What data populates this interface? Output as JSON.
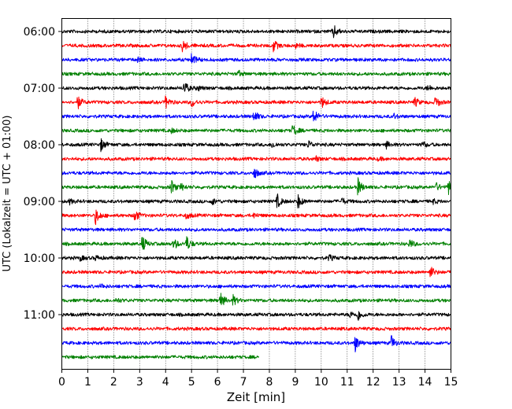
{
  "chart_data": {
    "type": "line",
    "subtype": "helicorder",
    "xlabel": "Zeit  [min]",
    "ylabel": "UTC (Lokalzeit = UTC + 01:00)",
    "xlim": [
      0,
      15
    ],
    "x_ticks": [
      0,
      1,
      2,
      3,
      4,
      5,
      6,
      7,
      8,
      9,
      10,
      11,
      12,
      13,
      14,
      15
    ],
    "x_tick_labels": [
      "0",
      "1",
      "2",
      "3",
      "4",
      "5",
      "6",
      "7",
      "8",
      "9",
      "10",
      "11",
      "12",
      "13",
      "14",
      "15"
    ],
    "y_ticks": [
      "06:00",
      "07:00",
      "08:00",
      "09:00",
      "10:00",
      "11:00"
    ],
    "grid": {
      "vertical_dotted": true
    },
    "trace_colors": [
      "#000000",
      "#ff0000",
      "#0000ff",
      "#008000"
    ],
    "traces": [
      {
        "start": "06:00",
        "end_min": 15,
        "events": [
          {
            "t": 10.45,
            "amp": 10
          }
        ]
      },
      {
        "start": "06:15",
        "end_min": 15,
        "events": [
          {
            "t": 4.65,
            "amp": 8
          },
          {
            "t": 8.15,
            "amp": 8
          },
          {
            "t": 9.0,
            "amp": 3
          }
        ]
      },
      {
        "start": "06:30",
        "end_min": 15,
        "events": [
          {
            "t": 5.0,
            "amp": 8
          },
          {
            "t": 2.9,
            "amp": 3
          }
        ]
      },
      {
        "start": "06:45",
        "end_min": 15,
        "events": [
          {
            "t": 6.8,
            "amp": 4
          }
        ]
      },
      {
        "start": "07:00",
        "end_min": 15,
        "events": [
          {
            "t": 4.7,
            "amp": 10
          },
          {
            "t": 5.2,
            "amp": 4
          },
          {
            "t": 14.1,
            "amp": 4
          }
        ]
      },
      {
        "start": "07:15",
        "end_min": 15,
        "events": [
          {
            "t": 0.6,
            "amp": 9
          },
          {
            "t": 4.0,
            "amp": 8
          },
          {
            "t": 5.0,
            "amp": 6
          },
          {
            "t": 10.0,
            "amp": 8
          },
          {
            "t": 13.6,
            "amp": 6
          },
          {
            "t": 14.4,
            "amp": 8
          }
        ]
      },
      {
        "start": "07:30",
        "end_min": 15,
        "events": [
          {
            "t": 7.4,
            "amp": 8
          },
          {
            "t": 9.7,
            "amp": 10
          },
          {
            "t": 12.8,
            "amp": 3
          }
        ]
      },
      {
        "start": "07:45",
        "end_min": 15,
        "events": [
          {
            "t": 8.9,
            "amp": 8
          },
          {
            "t": 4.2,
            "amp": 3
          }
        ]
      },
      {
        "start": "08:00",
        "end_min": 15,
        "events": [
          {
            "t": 1.5,
            "amp": 8
          },
          {
            "t": 8.1,
            "amp": 4
          },
          {
            "t": 9.5,
            "amp": 5
          },
          {
            "t": 12.5,
            "amp": 4
          },
          {
            "t": 13.9,
            "amp": 4
          }
        ]
      },
      {
        "start": "08:15",
        "end_min": 15,
        "events": [
          {
            "t": 9.8,
            "amp": 3
          },
          {
            "t": 12.2,
            "amp": 2
          }
        ]
      },
      {
        "start": "08:30",
        "end_min": 15,
        "events": [
          {
            "t": 7.4,
            "amp": 8
          }
        ]
      },
      {
        "start": "08:45",
        "end_min": 15,
        "events": [
          {
            "t": 4.2,
            "amp": 10
          },
          {
            "t": 4.6,
            "amp": 4
          },
          {
            "t": 11.4,
            "amp": 12
          },
          {
            "t": 14.4,
            "amp": 6
          },
          {
            "t": 14.9,
            "amp": 10
          }
        ]
      },
      {
        "start": "09:00",
        "end_min": 15,
        "events": [
          {
            "t": 8.3,
            "amp": 9
          },
          {
            "t": 9.1,
            "amp": 9
          },
          {
            "t": 5.8,
            "amp": 4
          },
          {
            "t": 0.3,
            "amp": 3
          },
          {
            "t": 10.8,
            "amp": 4
          },
          {
            "t": 14.3,
            "amp": 3
          }
        ]
      },
      {
        "start": "09:15",
        "end_min": 15,
        "events": [
          {
            "t": 1.3,
            "amp": 11
          },
          {
            "t": 2.8,
            "amp": 9
          },
          {
            "t": 4.8,
            "amp": 4
          },
          {
            "t": 7.4,
            "amp": 3
          }
        ]
      },
      {
        "start": "09:30",
        "end_min": 15,
        "events": []
      },
      {
        "start": "09:45",
        "end_min": 15,
        "events": [
          {
            "t": 3.1,
            "amp": 11
          },
          {
            "t": 4.3,
            "amp": 8
          },
          {
            "t": 4.8,
            "amp": 10
          },
          {
            "t": 13.4,
            "amp": 6
          }
        ]
      },
      {
        "start": "10:00",
        "end_min": 15,
        "events": [
          {
            "t": 0.7,
            "amp": 3
          },
          {
            "t": 1.3,
            "amp": 3
          },
          {
            "t": 10.3,
            "amp": 4
          }
        ]
      },
      {
        "start": "10:15",
        "end_min": 15,
        "events": [
          {
            "t": 14.2,
            "amp": 8
          }
        ]
      },
      {
        "start": "10:30",
        "end_min": 15,
        "events": [
          {
            "t": 1.5,
            "amp": 3
          }
        ]
      },
      {
        "start": "10:45",
        "end_min": 15,
        "events": [
          {
            "t": 6.1,
            "amp": 11
          },
          {
            "t": 6.6,
            "amp": 6
          },
          {
            "t": 2.1,
            "amp": 3
          }
        ]
      },
      {
        "start": "11:00",
        "end_min": 15,
        "events": [
          {
            "t": 11.4,
            "amp": 8
          },
          {
            "t": 11.1,
            "amp": 4
          }
        ]
      },
      {
        "start": "11:15",
        "end_min": 15,
        "events": []
      },
      {
        "start": "11:30",
        "end_min": 15,
        "events": [
          {
            "t": 11.3,
            "amp": 11
          },
          {
            "t": 12.7,
            "amp": 9
          }
        ]
      },
      {
        "start": "11:45",
        "end_min": 7.6,
        "events": []
      }
    ]
  }
}
